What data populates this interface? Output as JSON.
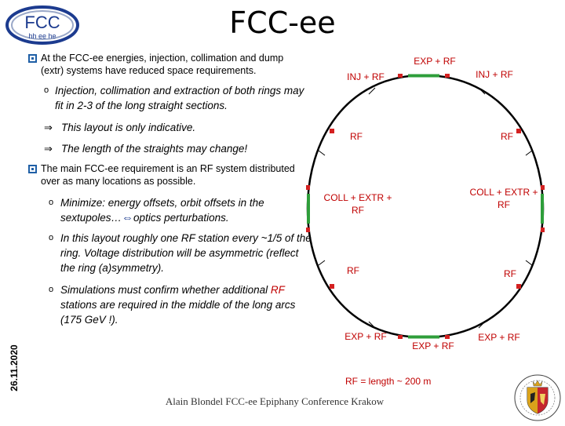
{
  "logo": {
    "main": "FCC",
    "sub": "hh ee he"
  },
  "title": "FCC-ee",
  "bullets": [
    {
      "text": "At the FCC-ee energies, injection, collimation and dump (extr) systems have reduced space requirements."
    },
    {
      "text": "The main FCC-ee requirement is an RF system distributed over as many locations as possible."
    }
  ],
  "sub1": {
    "point": "Injection, collimation and extraction of both rings may fit in 2-3 of the long straight sections.",
    "arrow1": "This layout is only indicative.",
    "arrow2": "The length of the straights may change!"
  },
  "sub2": {
    "p1_a": "Minimize: energy offsets, orbit offsets in the sextupoles…",
    "p1_b": "optics perturbations.",
    "p2": "In this layout roughly one RF station every ~1/5 of the ring. Voltage distribution will be asymmetric (reflect the ring (a)symmetry).",
    "p3_a": "Simulations must confirm whether additional",
    "p3_rf": "RF",
    "p3_b": "stations are required in the middle of the long arcs (175 GeV !)."
  },
  "ring_labels": {
    "exp_rf_top": "EXP + RF",
    "inj_rf_left": "INJ + RF",
    "inj_rf_right": "INJ + RF",
    "rf_left_upper": "RF",
    "rf_right_upper": "RF",
    "coll_left_1": "COLL + EXTR +",
    "coll_left_2": "RF",
    "coll_right_1": "COLL + EXTR +",
    "coll_right_2": "RF",
    "rf_left_lower": "RF",
    "rf_right_lower": "RF",
    "exp_rf_bottom_left": "EXP + RF",
    "exp_rf_bottom_mid": "EXP + RF",
    "exp_rf_bottom_right": "EXP + RF"
  },
  "rf_length": "RF = length ~ 200 m",
  "date": "26.11.2020",
  "footer": "Alain Blondel FCC-ee Epiphany Conference Krakow",
  "colors": {
    "accent": "#c00000",
    "straight": "#2e9e3a",
    "bullet": "#1f5fa6"
  }
}
